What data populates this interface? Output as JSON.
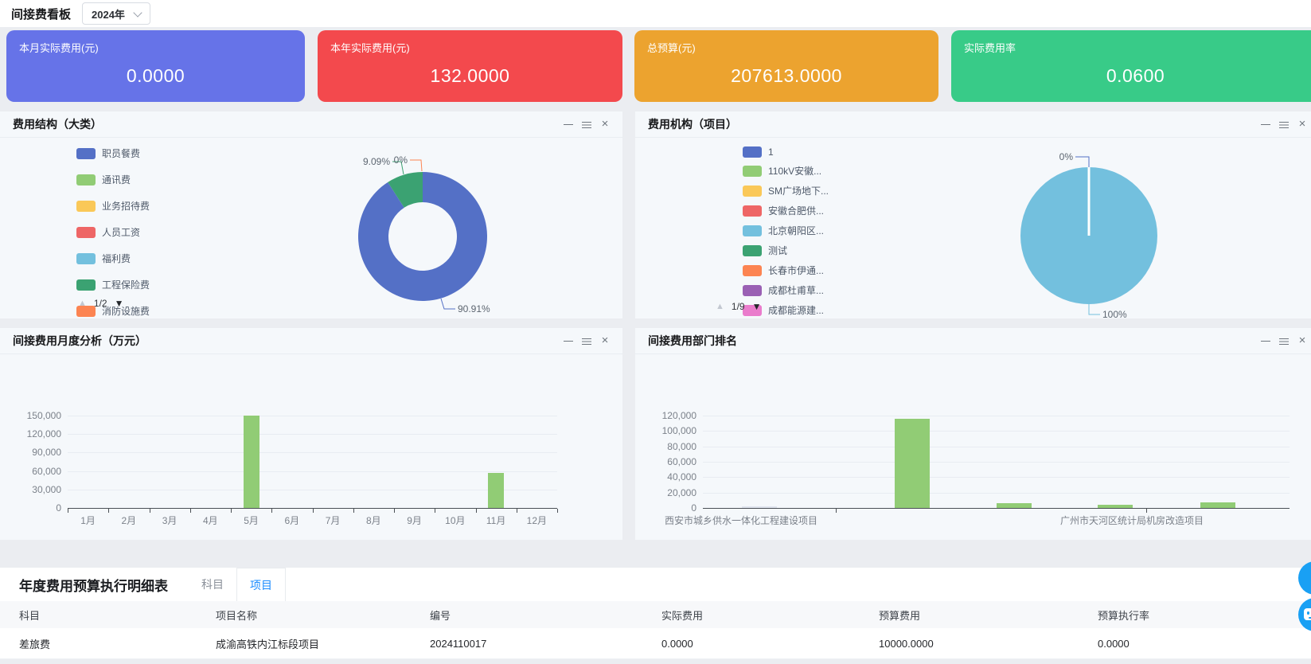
{
  "header": {
    "title": "间接费看板",
    "year_value": "2024年"
  },
  "window_icons": {
    "minimize": "minimize",
    "menu": "menu",
    "close": "×"
  },
  "pager_icons": {
    "up": "▲",
    "down": "▼"
  },
  "kpis": [
    {
      "label": "本月实际费用(元)",
      "value": "0.0000",
      "color": "#6673e8"
    },
    {
      "label": "本年实际费用(元)",
      "value": "132.0000",
      "color": "#f3494d"
    },
    {
      "label": "总预算(元)",
      "value": "207613.0000",
      "color": "#eca32f"
    },
    {
      "label": "实际费用率",
      "value": "0.0600",
      "color": "#38cb88"
    }
  ],
  "panel1": {
    "title": "费用结构（大类）",
    "pagination": "1/2",
    "legend": [
      {
        "label": "职员餐费",
        "color": "#5470c6"
      },
      {
        "label": "通讯费",
        "color": "#91cc75"
      },
      {
        "label": "业务招待费",
        "color": "#fac858"
      },
      {
        "label": "人员工资",
        "color": "#ee6666"
      },
      {
        "label": "福利费",
        "color": "#73c0de"
      },
      {
        "label": "工程保险费",
        "color": "#3ba272"
      },
      {
        "label": "消防设施费",
        "color": "#fc8452"
      }
    ]
  },
  "panel2": {
    "title": "费用机构（项目）",
    "pagination": "1/9",
    "legend": [
      {
        "label": "1",
        "color": "#5470c6"
      },
      {
        "label": "110kV安徽...",
        "color": "#91cc75"
      },
      {
        "label": "SM广场地下...",
        "color": "#fac858"
      },
      {
        "label": "安徽合肥供...",
        "color": "#ee6666"
      },
      {
        "label": "北京朝阳区...",
        "color": "#73c0de"
      },
      {
        "label": "测试",
        "color": "#3ba272"
      },
      {
        "label": "长春市伊通...",
        "color": "#fc8452"
      },
      {
        "label": "成都杜甫草...",
        "color": "#9a60b4"
      },
      {
        "label": "成都能源建...",
        "color": "#ea7ccc"
      }
    ]
  },
  "panel3": {
    "title": "间接费用月度分析（万元）"
  },
  "panel4": {
    "title": "间接费用部门排名"
  },
  "chart_data": [
    {
      "id": "expense-structure-by-category",
      "type": "pie",
      "donut": true,
      "title": "费用结构（大类）",
      "legend_position": "left",
      "legend_page": "1/2",
      "slices": [
        {
          "name": "职员餐费",
          "pct": 90.91,
          "label": "90.91%",
          "color": "#5470c6"
        },
        {
          "name": "工程保险费",
          "pct": 9.09,
          "label": "9.09%",
          "color": "#3ba272"
        },
        {
          "name": "消防设施费",
          "pct": 0,
          "label": "0%",
          "color": "#fc8452"
        }
      ]
    },
    {
      "id": "expense-by-project",
      "type": "pie",
      "donut": false,
      "title": "费用机构（项目）",
      "legend_position": "left",
      "legend_page": "1/9",
      "slices": [
        {
          "name": "北京朝阳区...",
          "pct": 100,
          "label": "100%",
          "color": "#73c0de"
        },
        {
          "name": "1",
          "pct": 0,
          "label": "0%",
          "color": "#5470c6"
        }
      ]
    },
    {
      "id": "monthly-indirect-expense",
      "type": "bar",
      "title": "间接费用月度分析（万元）",
      "grid": true,
      "legend_position": "none",
      "categories": [
        "1月",
        "2月",
        "3月",
        "4月",
        "5月",
        "6月",
        "7月",
        "8月",
        "9月",
        "10月",
        "11月",
        "12月"
      ],
      "values": [
        0,
        0,
        0,
        0,
        150000,
        0,
        0,
        0,
        0,
        0,
        57500,
        0
      ],
      "ylim": [
        0,
        150000
      ],
      "yticks": [
        "150,000",
        "120,000",
        "90,000",
        "60,000",
        "30,000",
        "0"
      ],
      "bar_color": "#91cc75"
    },
    {
      "id": "department-ranking",
      "type": "bar",
      "title": "间接费用部门排名",
      "grid": true,
      "legend_position": "none",
      "categories": [
        "西安市城乡供水一体化工程建设项目",
        "",
        "",
        "广州市天河区统计局机房改造项目",
        ""
      ],
      "values": [
        1000,
        116000,
        6500,
        4500,
        7500
      ],
      "ylim": [
        0,
        120000
      ],
      "yticks": [
        "120,000",
        "100,000",
        "80,000",
        "60,000",
        "40,000",
        "20,000",
        "0"
      ],
      "bar_color": "#91cc75",
      "bar_colors": [
        "#dfe4ee",
        "#91cc75",
        "#91cc75",
        "#91cc75",
        "#91cc75"
      ]
    }
  ],
  "table": {
    "title": "年度费用预算执行明细表",
    "tabs": [
      {
        "label": "科目",
        "active": false
      },
      {
        "label": "项目",
        "active": true
      }
    ],
    "columns": [
      "科目",
      "项目名称",
      "编号",
      "实际费用",
      "预算费用",
      "预算执行率"
    ],
    "rows": [
      [
        "差旅费",
        "成渝高铁内江标段项目",
        "2024110017",
        "0.0000",
        "10000.0000",
        "0.0000"
      ]
    ]
  }
}
